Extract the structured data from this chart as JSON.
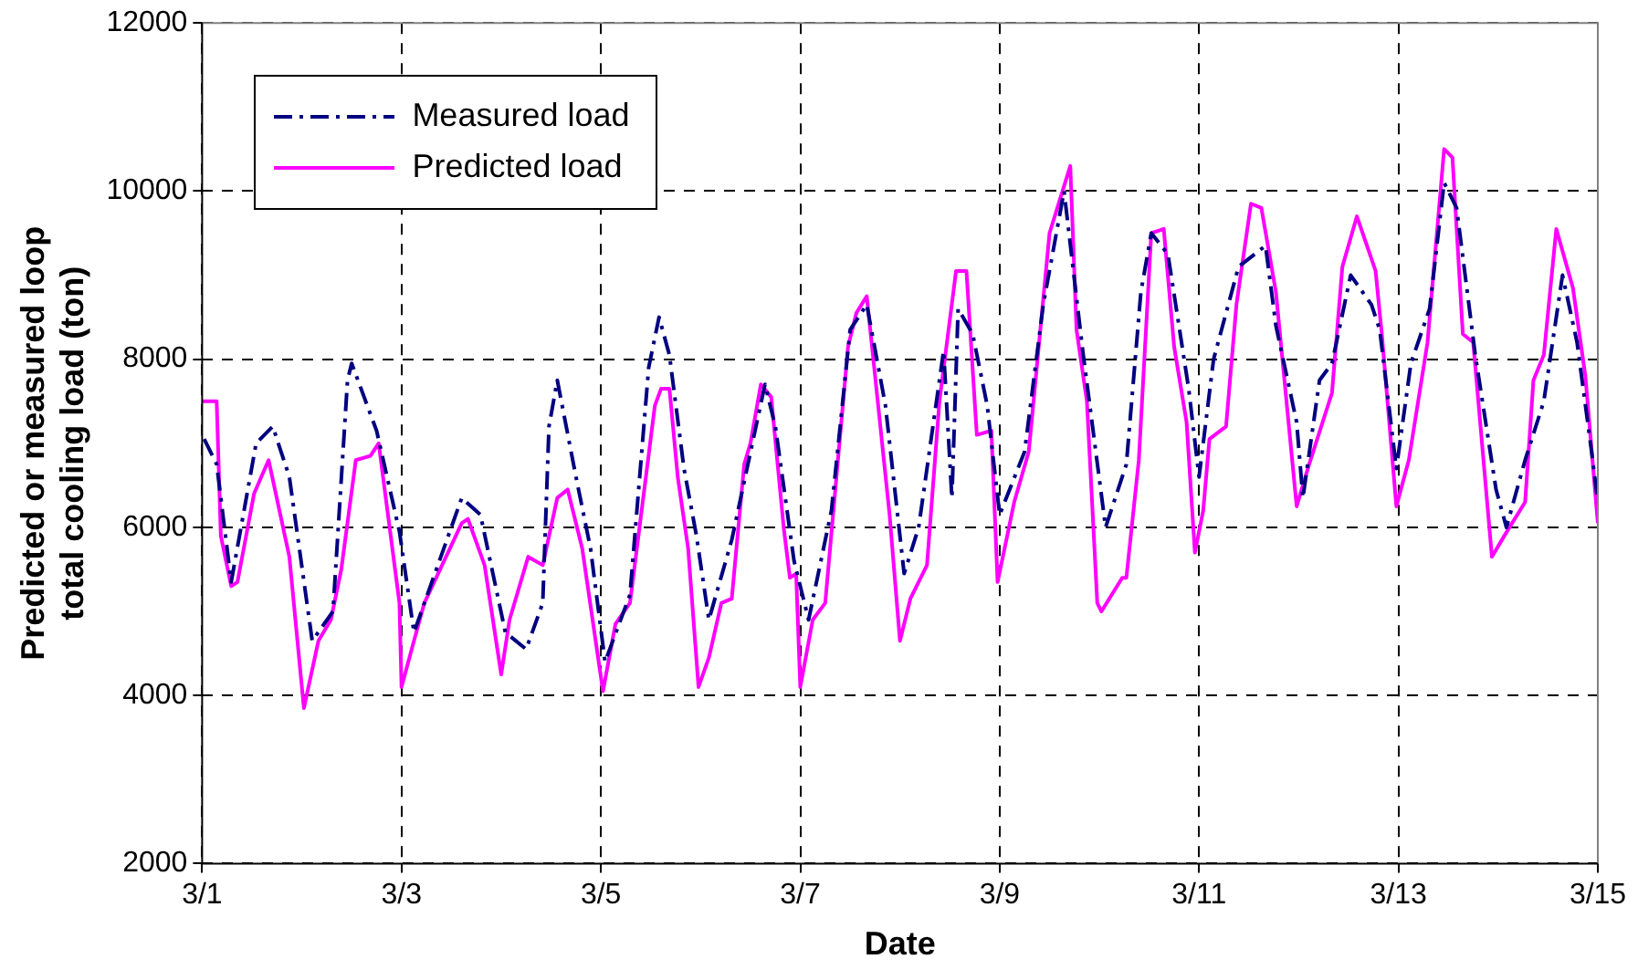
{
  "chart_data": {
    "type": "line",
    "xlabel": "Date",
    "ylabel": "Predicted or measured loop total cooling load (ton)",
    "xlim": [
      "--03-01",
      "--03-15"
    ],
    "xticks": [
      {
        "value": "--03-01",
        "label": "3/1"
      },
      {
        "value": "--03-03",
        "label": "3/3"
      },
      {
        "value": "--03-05",
        "label": "3/5"
      },
      {
        "value": "--03-07",
        "label": "3/7"
      },
      {
        "value": "--03-09",
        "label": "3/9"
      },
      {
        "value": "--03-11",
        "label": "3/11"
      },
      {
        "value": "--03-13",
        "label": "3/13"
      },
      {
        "value": "--03-15",
        "label": "3/15"
      }
    ],
    "ylim": [
      2000,
      12000
    ],
    "yticks": [
      2000,
      4000,
      6000,
      8000,
      10000,
      12000
    ],
    "grid": true,
    "legend": "top left",
    "marker": "none",
    "series": [
      {
        "name": "Measured load",
        "color": "#000080",
        "line_style": "dashed",
        "x": [
          "--03-01T00:30",
          "--03-01T03:30",
          "--03-01T07:00",
          "--03-01T13:00",
          "--03-01T17:00",
          "--03-01T21:00",
          "--03-02T02:30",
          "--03-02T07:30",
          "--03-02T11:00",
          "--03-02T12:00",
          "--03-02T18:00",
          "--03-02T23:30",
          "--03-03T03:00",
          "--03-03T14:30",
          "--03-03T19:00",
          "--03-04T01:00",
          "--03-04T06:00",
          "--03-04T10:00",
          "--03-04T11:30",
          "--03-04T13:30",
          "--03-04T18:00",
          "--03-04T21:30",
          "--03-05T01:00",
          "--03-05T07:00",
          "--03-05T11:30",
          "--03-05T14:00",
          "--03-05T16:30",
          "--03-05T20:00",
          "--03-05T23:00",
          "--03-06T02:00",
          "--03-06T07:30",
          "--03-06T15:30",
          "--03-06T18:00",
          "--03-06T22:30",
          "--03-07T02:00",
          "--03-07T07:30",
          "--03-07T12:00",
          "--03-07T16:00",
          "--03-07T20:30",
          "--03-08T01:00",
          "--03-08T04:30",
          "--03-08T10:30",
          "--03-08T12:30",
          "--03-08T14:00",
          "--03-08T17:30",
          "--03-08T21:00",
          "--03-09T00:00",
          "--03-09T06:00",
          "--03-09T10:30",
          "--03-09T15:30",
          "--03-09T20:00",
          "--03-10T01:30",
          "--03-10T06:30",
          "--03-10T10:00",
          "--03-10T12:30",
          "--03-10T16:30",
          "--03-10T21:30",
          "--03-11T00:00",
          "--03-11T03:30",
          "--03-11T09:30",
          "--03-11T16:00",
          "--03-11T18:30",
          "--03-11T23:30",
          "--03-12T01:00",
          "--03-12T05:00",
          "--03-12T08:00",
          "--03-12T12:30",
          "--03-12T17:30",
          "--03-12T19:30",
          "--03-12T23:30",
          "--03-13T03:00",
          "--03-13T07:30",
          "--03-13T11:00",
          "--03-13T14:00",
          "--03-13T18:30",
          "--03-13T23:30",
          "--03-14T02:00",
          "--03-14T06:30",
          "--03-14T11:00",
          "--03-14T15:30",
          "--03-14T19:00",
          "--03-14T22:30",
          "--03-15T00:00"
        ],
        "values": [
          7050,
          6750,
          5350,
          7000,
          7200,
          6600,
          4650,
          5000,
          7750,
          7950,
          7150,
          5950,
          4750,
          6350,
          6150,
          4750,
          4550,
          5100,
          7200,
          7750,
          6600,
          5750,
          4400,
          5200,
          7900,
          8500,
          8050,
          6700,
          5900,
          4900,
          5850,
          7700,
          7200,
          5600,
          4900,
          6200,
          8350,
          8650,
          7450,
          5450,
          6000,
          8100,
          6350,
          8600,
          8300,
          7450,
          6150,
          6900,
          8650,
          10000,
          8100,
          6000,
          6750,
          8800,
          9500,
          9250,
          7650,
          6600,
          8000,
          9100,
          9350,
          8400,
          7250,
          6350,
          7750,
          7950,
          9000,
          8650,
          8350,
          6700,
          7950,
          8600,
          10100,
          9800,
          8050,
          6450,
          6000,
          6800,
          7500,
          9000,
          8200,
          6900,
          6300
        ]
      },
      {
        "name": "Predicted load",
        "color": "#ff00ff",
        "line_style": "solid",
        "x": [
          "--03-01T00:00",
          "--03-01T03:30",
          "--03-01T04:30",
          "--03-01T07:00",
          "--03-01T08:30",
          "--03-01T12:30",
          "--03-01T16:00",
          "--03-01T21:00",
          "--03-02T00:30",
          "--03-02T04:00",
          "--03-02T07:00",
          "--03-02T09:30",
          "--03-02T13:00",
          "--03-02T16:30",
          "--03-02T18:30",
          "--03-02T23:30",
          "--03-03T00:00",
          "--03-03T03:00",
          "--03-03T05:30",
          "--03-03T14:30",
          "--03-03T16:00",
          "--03-03T20:00",
          "--03-04T00:00",
          "--03-04T02:00",
          "--03-04T06:30",
          "--03-04T10:00",
          "--03-04T13:30",
          "--03-04T16:00",
          "--03-04T19:30",
          "--03-05T00:30",
          "--03-05T03:30",
          "--03-05T07:00",
          "--03-05T13:00",
          "--03-05T14:30",
          "--03-05T16:30",
          "--03-05T18:30",
          "--03-05T21:00",
          "--03-05T23:30",
          "--03-06T02:00",
          "--03-06T05:00",
          "--03-06T07:30",
          "--03-06T10:30",
          "--03-06T12:00",
          "--03-06T14:30",
          "--03-06T17:00",
          "--03-06T20:00",
          "--03-06T21:30",
          "--03-06T23:00",
          "--03-07T00:00",
          "--03-07T03:00",
          "--03-07T06:00",
          "--03-07T11:30",
          "--03-07T13:30",
          "--03-07T16:00",
          "--03-07T21:30",
          "--03-08T00:00",
          "--03-08T02:30",
          "--03-08T06:30",
          "--03-08T09:30",
          "--03-08T13:30",
          "--03-08T16:00",
          "--03-08T18:30",
          "--03-08T22:00",
          "--03-08T23:30",
          "--03-09T03:30",
          "--03-09T07:00",
          "--03-09T12:00",
          "--03-09T17:00",
          "--03-09T18:30",
          "--03-09T21:00",
          "--03-09T23:30",
          "--03-10T00:30",
          "--03-10T05:30",
          "--03-10T06:30",
          "--03-10T09:30",
          "--03-10T12:30",
          "--03-10T15:30",
          "--03-10T18:00",
          "--03-10T21:00",
          "--03-10T23:00",
          "--03-11T01:00",
          "--03-11T02:30",
          "--03-11T06:30",
          "--03-11T09:00",
          "--03-11T12:30",
          "--03-11T15:00",
          "--03-11T18:30",
          "--03-11T23:30",
          "--03-12T02:30",
          "--03-12T08:00",
          "--03-12T10:30",
          "--03-12T14:00",
          "--03-12T18:30",
          "--03-12T20:00",
          "--03-12T23:30",
          "--03-13T02:30",
          "--03-13T07:00",
          "--03-13T11:00",
          "--03-13T13:00",
          "--03-13T15:30",
          "--03-13T18:00",
          "--03-13T22:30",
          "--03-14T01:30",
          "--03-14T06:30",
          "--03-14T08:30",
          "--03-14T11:00",
          "--03-14T14:00",
          "--03-14T18:00",
          "--03-14T21:00",
          "--03-15T00:00"
        ],
        "values": [
          7500,
          7500,
          5900,
          5300,
          5350,
          6400,
          6800,
          5650,
          3850,
          4650,
          4900,
          5500,
          6800,
          6850,
          7000,
          5100,
          4100,
          4650,
          5100,
          6050,
          6100,
          5550,
          4250,
          4900,
          5650,
          5550,
          6350,
          6450,
          5750,
          4050,
          4850,
          5100,
          7450,
          7650,
          7650,
          6600,
          5750,
          4100,
          4450,
          5100,
          5150,
          6750,
          7000,
          7700,
          7550,
          6000,
          5400,
          5450,
          4100,
          4900,
          5100,
          8150,
          8550,
          8750,
          6150,
          4650,
          5150,
          5550,
          7500,
          9050,
          9050,
          7100,
          7150,
          5350,
          6300,
          6900,
          9500,
          10300,
          8350,
          7500,
          5100,
          5000,
          5400,
          5400,
          6800,
          9500,
          9550,
          8150,
          7250,
          5700,
          6200,
          7050,
          7200,
          8650,
          9850,
          9800,
          8800,
          6250,
          6750,
          7600,
          9100,
          9700,
          9050,
          8300,
          6250,
          6800,
          8200,
          10500,
          10400,
          8300,
          8200,
          5650,
          5900,
          6300,
          7750,
          8050,
          9550,
          8850,
          7800,
          6050
        ]
      }
    ]
  }
}
